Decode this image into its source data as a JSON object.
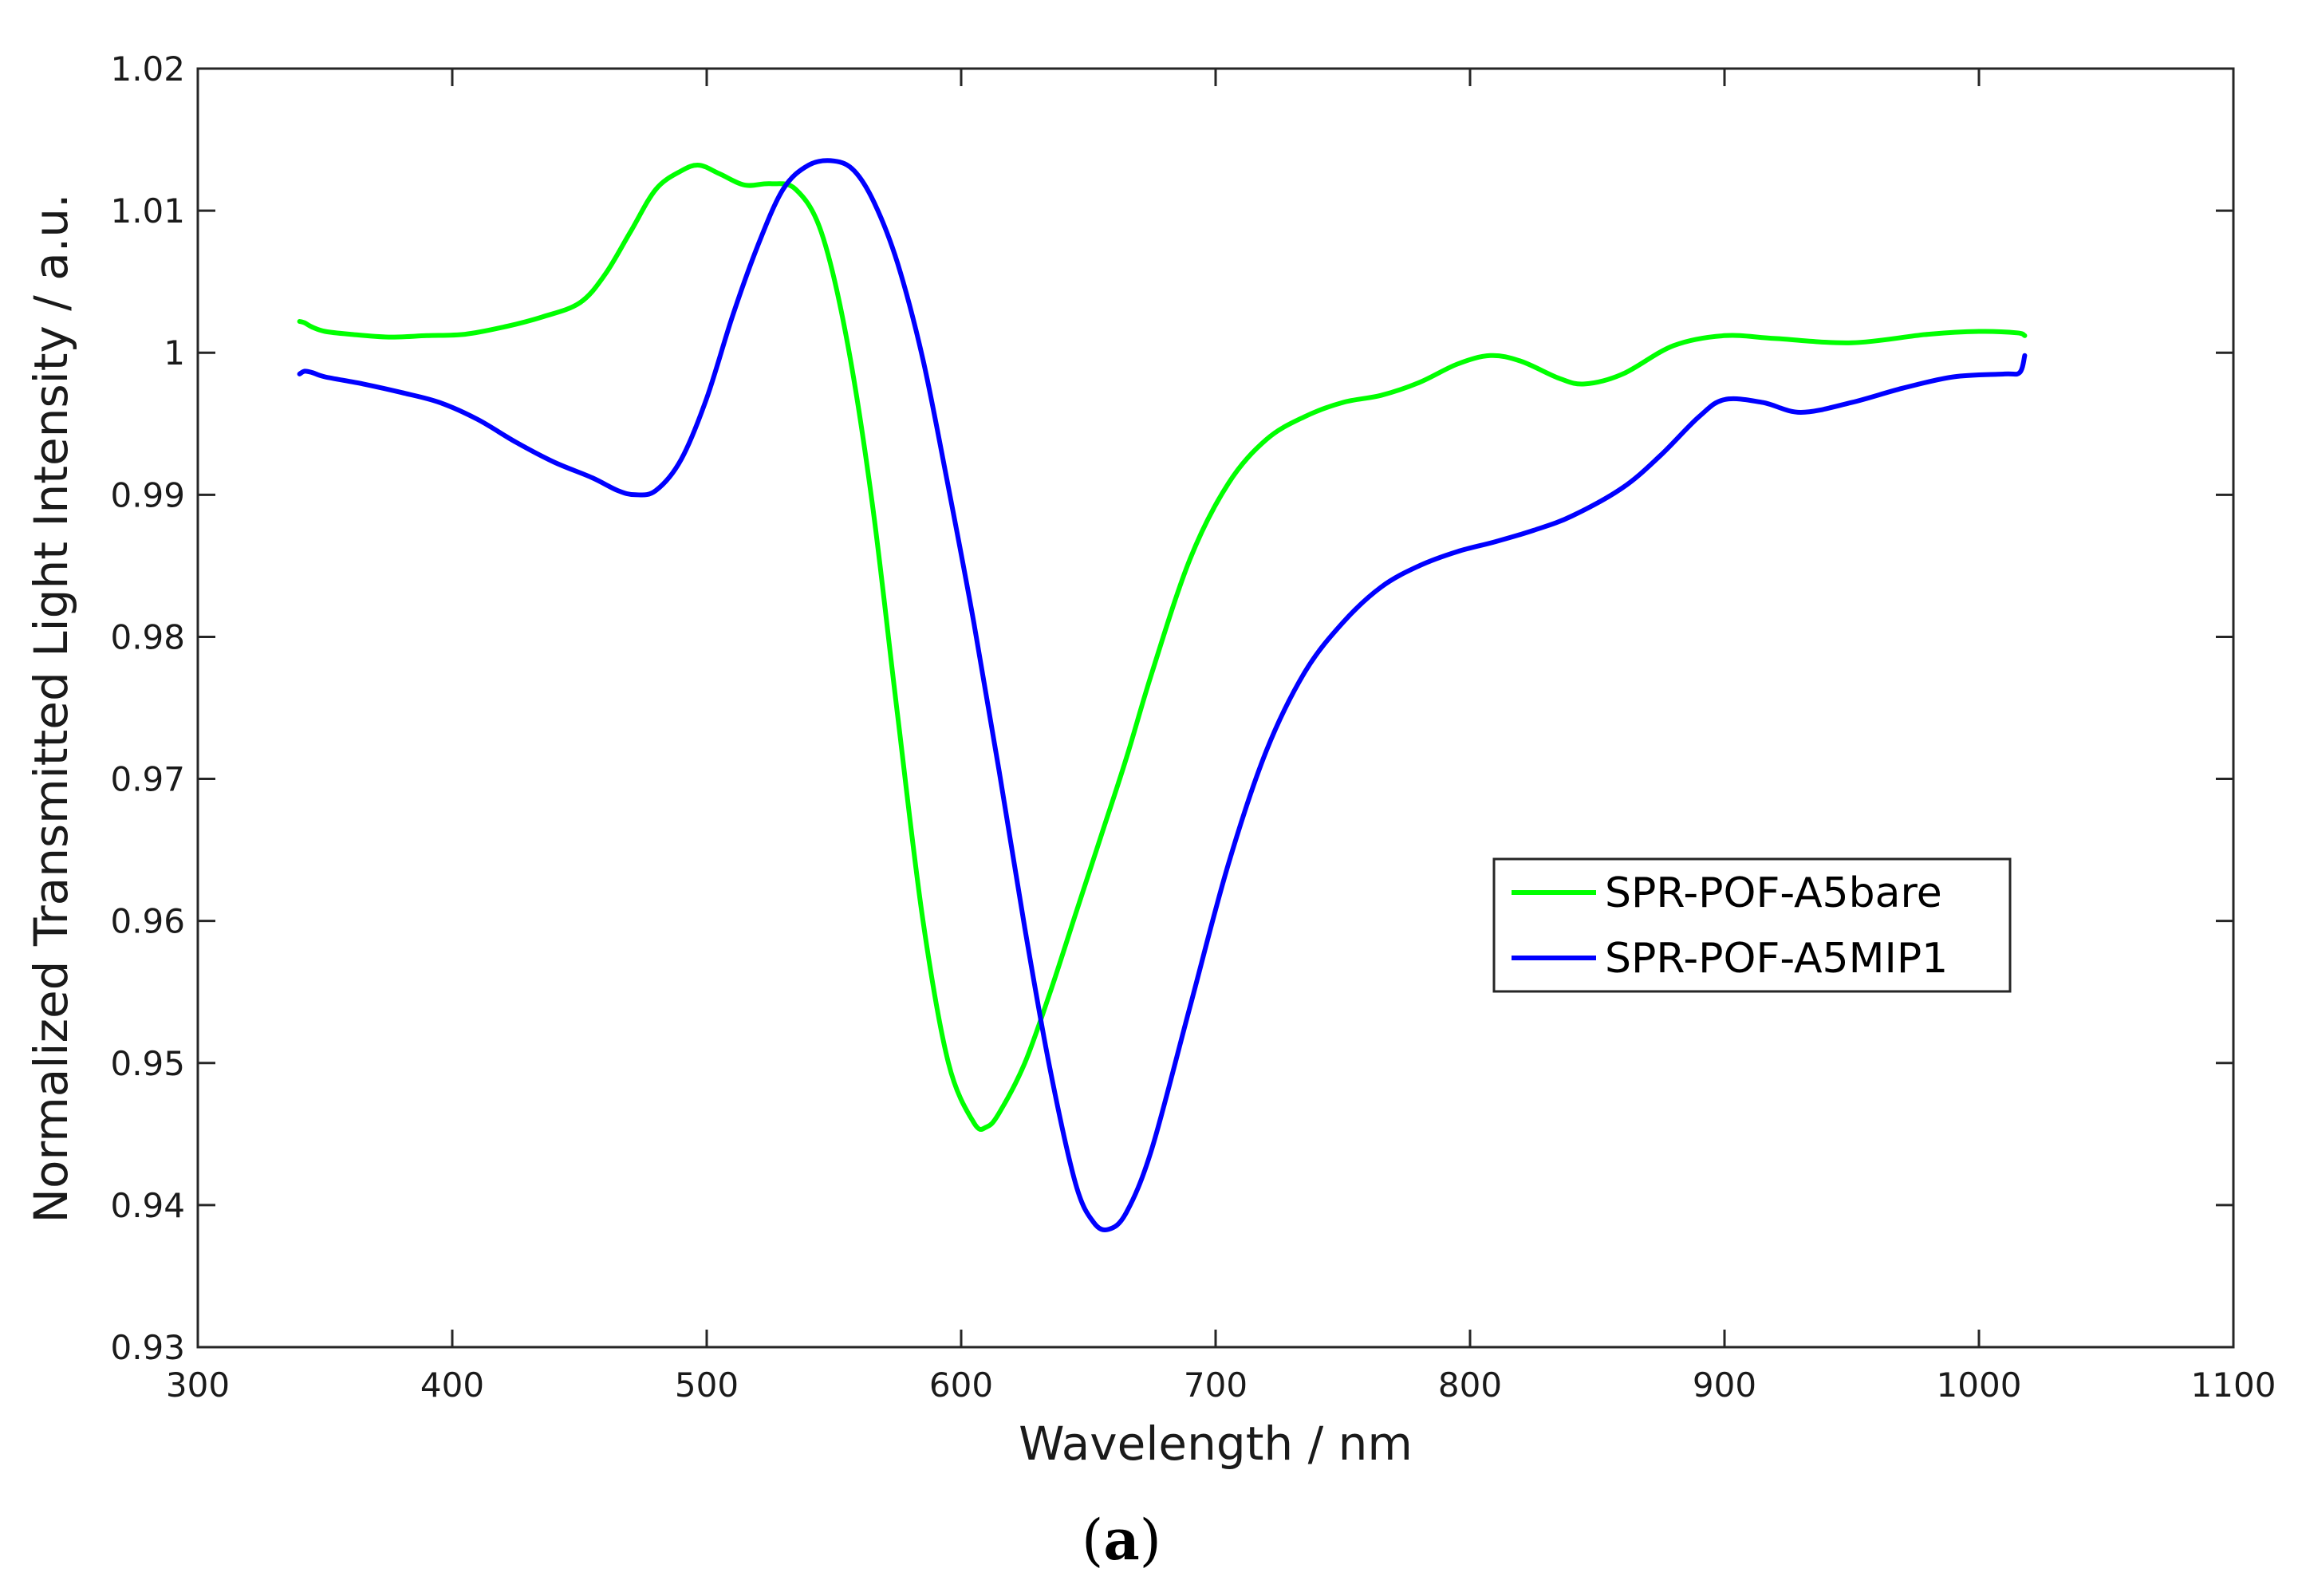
{
  "chart_data": {
    "type": "line",
    "xlabel": "Wavelength / nm",
    "ylabel": "Normalized Transmitted Light Intensity / a.u.",
    "xlim": [
      300,
      1100
    ],
    "ylim": [
      0.93,
      1.02
    ],
    "xticks": [
      300,
      400,
      500,
      600,
      700,
      800,
      900,
      1000,
      1100
    ],
    "xtick_labels": [
      "300",
      "400",
      "500",
      "600",
      "700",
      "800",
      "900",
      "1000",
      "1100"
    ],
    "yticks": [
      0.93,
      0.94,
      0.95,
      0.96,
      0.97,
      0.98,
      0.99,
      1.0,
      1.01,
      1.02
    ],
    "ytick_labels": [
      "0.93",
      "0.94",
      "0.95",
      "0.96",
      "0.97",
      "0.98",
      "0.99",
      "1",
      "1.01",
      "1.02"
    ],
    "grid": false,
    "legend_position": "center-right",
    "panel_label": {
      "open": "(",
      "letter": "a",
      "close": ")"
    },
    "series": [
      {
        "name": "SPR-POF-A5bare",
        "color": "#00ff00",
        "x": [
          340,
          342,
          345,
          350,
          360,
          375,
          390,
          405,
          420,
          435,
          450,
          460,
          470,
          480,
          490,
          497,
          505,
          515,
          525,
          535,
          545,
          555,
          565,
          575,
          585,
          595,
          605,
          610,
          615,
          625,
          635,
          645,
          655,
          665,
          675,
          690,
          705,
          720,
          735,
          750,
          765,
          780,
          795,
          808,
          820,
          835,
          845,
          860,
          880,
          900,
          920,
          950,
          980,
          1000,
          1015,
          1018
        ],
        "y": [
          1.0022,
          1.0021,
          1.0018,
          1.0015,
          1.0013,
          1.0011,
          1.0012,
          1.0013,
          1.0018,
          1.0025,
          1.0035,
          1.0055,
          1.0085,
          1.0115,
          1.0128,
          1.0132,
          1.0126,
          1.0118,
          1.0119,
          1.0115,
          1.0085,
          1.001,
          0.9895,
          0.9745,
          0.96,
          0.95,
          0.9458,
          0.9455,
          0.9465,
          0.95,
          0.955,
          0.9605,
          0.966,
          0.9715,
          0.9775,
          0.9855,
          0.9908,
          0.9939,
          0.9955,
          0.9965,
          0.997,
          0.9979,
          0.9992,
          0.9998,
          0.9994,
          0.9982,
          0.9978,
          0.9985,
          1.0005,
          1.0012,
          1.001,
          1.0007,
          1.0013,
          1.0015,
          1.0014,
          1.0012
        ]
      },
      {
        "name": "SPR-POF-A5MIP1",
        "color": "#0000ff",
        "x": [
          340,
          342,
          345,
          350,
          365,
          380,
          395,
          410,
          425,
          440,
          455,
          465,
          472,
          480,
          490,
          500,
          510,
          520,
          530,
          540,
          550,
          558,
          566,
          575,
          585,
          595,
          605,
          615,
          625,
          635,
          645,
          652,
          658,
          665,
          675,
          690,
          705,
          720,
          735,
          750,
          765,
          780,
          795,
          810,
          825,
          840,
          860,
          875,
          890,
          900,
          915,
          930,
          950,
          970,
          990,
          1010,
          1016,
          1018
        ],
        "y": [
          0.9985,
          0.9987,
          0.9986,
          0.9983,
          0.9978,
          0.9972,
          0.9965,
          0.9953,
          0.9937,
          0.9923,
          0.9912,
          0.9903,
          0.99,
          0.9903,
          0.9925,
          0.9968,
          1.0025,
          1.0075,
          1.0115,
          1.0132,
          1.0135,
          1.0128,
          1.0105,
          1.0063,
          0.9995,
          0.9905,
          0.981,
          0.9705,
          0.9595,
          0.9495,
          0.9415,
          0.9388,
          0.9383,
          0.9395,
          0.944,
          0.954,
          0.964,
          0.972,
          0.9775,
          0.981,
          0.9835,
          0.985,
          0.986,
          0.9867,
          0.9875,
          0.9885,
          0.9905,
          0.9928,
          0.9955,
          0.9967,
          0.9965,
          0.9958,
          0.9965,
          0.9975,
          0.9983,
          0.9985,
          0.9986,
          0.9998
        ]
      }
    ]
  }
}
